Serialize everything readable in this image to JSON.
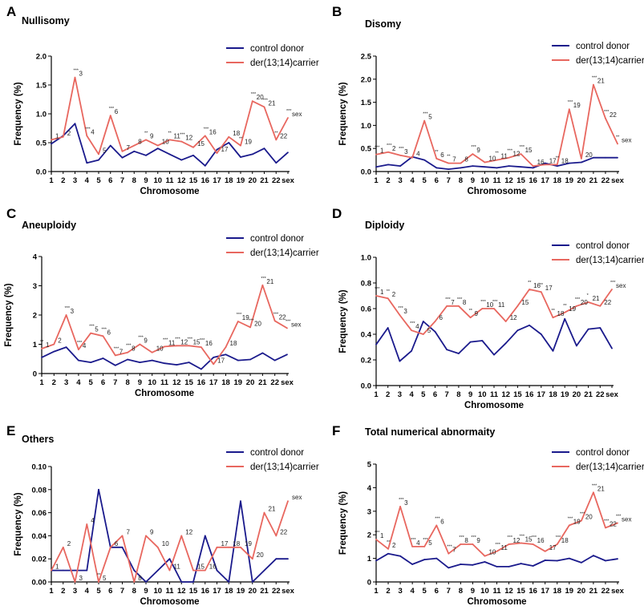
{
  "colors": {
    "control": "#1a1a8c",
    "carrier": "#e8675f",
    "axis": "#000000"
  },
  "chart_data": [
    {
      "type": "line",
      "panel": "A",
      "title": "Nullisomy",
      "xlabel": "Chromosome",
      "ylabel": "Frequency (%)",
      "ylim": [
        0,
        2.0
      ],
      "yticks": [
        "0.0",
        "0.5",
        "1.0",
        "1.5",
        "2.0"
      ],
      "categories": [
        "1",
        "2",
        "3",
        "4",
        "5",
        "6",
        "7",
        "8",
        "9",
        "10",
        "11",
        "12",
        "15",
        "16",
        "17",
        "18",
        "19",
        "20",
        "21",
        "22",
        "sex"
      ],
      "series": [
        {
          "name": "control donor",
          "values": [
            0.48,
            0.62,
            0.83,
            0.15,
            0.2,
            0.45,
            0.24,
            0.35,
            0.28,
            0.4,
            0.3,
            0.2,
            0.28,
            0.1,
            0.38,
            0.5,
            0.25,
            0.3,
            0.4,
            0.15,
            0.33
          ]
        },
        {
          "name": "der(13;14)carrier",
          "values": [
            0.55,
            0.6,
            1.63,
            0.62,
            0.3,
            0.97,
            0.35,
            0.45,
            0.55,
            0.45,
            0.55,
            0.52,
            0.42,
            0.62,
            0.32,
            0.6,
            0.45,
            1.22,
            1.12,
            0.55,
            0.93
          ]
        }
      ],
      "point_labels": [
        "1",
        "2",
        "3",
        "4",
        "5",
        "6",
        "7",
        "8",
        "9",
        "10",
        "11",
        "12",
        "15",
        "16",
        "17",
        "18",
        "19",
        "20",
        "21",
        "22",
        "sex"
      ],
      "stars": [
        "",
        "",
        "***",
        "***",
        "",
        "***",
        "",
        "",
        "**",
        "",
        "**",
        "***",
        "",
        "***",
        "",
        "",
        "**",
        "***",
        "***",
        "**",
        "***"
      ]
    },
    {
      "type": "line",
      "panel": "B",
      "title": "Disomy",
      "xlabel": "Chromosome",
      "ylabel": "Frequency (%)",
      "ylim": [
        0,
        2.5
      ],
      "yticks": [
        "0.0",
        "0.5",
        "1.0",
        "1.5",
        "2.0",
        "2.5"
      ],
      "categories": [
        "1",
        "2",
        "3",
        "4",
        "5",
        "6",
        "7",
        "8",
        "9",
        "10",
        "11",
        "12",
        "15",
        "16",
        "17",
        "18",
        "19",
        "20",
        "21",
        "22",
        "sex"
      ],
      "series": [
        {
          "name": "control donor",
          "values": [
            0.1,
            0.15,
            0.12,
            0.32,
            0.25,
            0.08,
            0.05,
            0.08,
            0.12,
            0.1,
            0.08,
            0.12,
            0.1,
            0.08,
            0.18,
            0.12,
            0.18,
            0.2,
            0.3,
            0.3,
            0.3
          ]
        },
        {
          "name": "der(13;14)carrier",
          "values": [
            0.37,
            0.42,
            0.35,
            0.3,
            1.1,
            0.28,
            0.18,
            0.18,
            0.38,
            0.2,
            0.25,
            0.3,
            0.38,
            0.12,
            0.15,
            0.15,
            1.35,
            0.28,
            1.88,
            1.15,
            0.6
          ]
        }
      ],
      "point_labels": [
        "1",
        "2",
        "3",
        "4",
        "5",
        "6",
        "7",
        "8",
        "9",
        "10",
        "11",
        "12",
        "15",
        "16",
        "17",
        "18",
        "19",
        "20",
        "21",
        "22",
        "sex"
      ],
      "stars": [
        "***",
        "***",
        "***",
        "",
        "***",
        "**",
        "**",
        "",
        "***",
        "",
        "**",
        "***",
        "***",
        "",
        "",
        "**",
        "***",
        "",
        "***",
        "***",
        "**"
      ]
    },
    {
      "type": "line",
      "panel": "C",
      "title": "Aneuploidy",
      "xlabel": "Chromosome",
      "ylabel": "Frequency  (%)",
      "ylim": [
        0,
        4
      ],
      "yticks": [
        "0",
        "1",
        "2",
        "3",
        "4"
      ],
      "categories": [
        "1",
        "2",
        "3",
        "4",
        "5",
        "6",
        "7",
        "8",
        "9",
        "10",
        "11",
        "12",
        "15",
        "16",
        "17",
        "18",
        "19",
        "20",
        "21",
        "22",
        "sex"
      ],
      "series": [
        {
          "name": "control donor",
          "values": [
            0.55,
            0.75,
            0.9,
            0.45,
            0.38,
            0.52,
            0.28,
            0.48,
            0.38,
            0.45,
            0.35,
            0.3,
            0.38,
            0.15,
            0.55,
            0.65,
            0.45,
            0.48,
            0.7,
            0.45,
            0.65
          ]
        },
        {
          "name": "der(13;14)carrier",
          "values": [
            0.85,
            1.0,
            2.0,
            0.82,
            1.38,
            1.28,
            0.62,
            0.72,
            1.0,
            0.72,
            0.92,
            0.95,
            0.95,
            0.9,
            0.32,
            0.9,
            1.78,
            1.58,
            3.02,
            1.8,
            1.55
          ]
        }
      ],
      "point_labels": [
        "1",
        "2",
        "3",
        "4",
        "5",
        "6",
        "7",
        "8",
        "9",
        "10",
        "11",
        "12",
        "15",
        "16",
        "17",
        "18",
        "19",
        "20",
        "21",
        "22",
        "sex"
      ],
      "stars": [
        "**",
        "",
        "***",
        "***",
        "***",
        "***",
        "***",
        "***",
        "***",
        "",
        "***",
        "***",
        "***",
        "***",
        "",
        "",
        "***",
        "***",
        "***",
        "***",
        "***"
      ]
    },
    {
      "type": "line",
      "panel": "D",
      "title": "Diploidy",
      "xlabel": "Chromosome",
      "ylabel": "Frequency (%)",
      "ylim": [
        0,
        1.0
      ],
      "yticks": [
        "0.0",
        "0.2",
        "0.4",
        "0.6",
        "0.8",
        "1.0"
      ],
      "categories": [
        "1",
        "2",
        "3",
        "4",
        "5",
        "6",
        "7",
        "8",
        "9",
        "10",
        "11",
        "12",
        "15",
        "16",
        "17",
        "18",
        "19",
        "20",
        "21",
        "22",
        "sex"
      ],
      "series": [
        {
          "name": "control donor",
          "values": [
            0.32,
            0.45,
            0.19,
            0.27,
            0.5,
            0.42,
            0.28,
            0.25,
            0.34,
            0.35,
            0.24,
            0.33,
            0.43,
            0.47,
            0.4,
            0.27,
            0.52,
            0.31,
            0.44,
            0.45,
            0.29
          ]
        },
        {
          "name": "der(13;14)carrier",
          "values": [
            0.7,
            0.68,
            0.55,
            0.43,
            0.4,
            0.5,
            0.62,
            0.62,
            0.53,
            0.6,
            0.6,
            0.5,
            0.62,
            0.75,
            0.73,
            0.53,
            0.57,
            0.62,
            0.65,
            0.62,
            0.75
          ]
        }
      ],
      "point_labels": [
        "1",
        "2",
        "3",
        "4",
        "5",
        "6",
        "7",
        "8",
        "9",
        "10",
        "11",
        "12",
        "15",
        "16",
        "17",
        "18",
        "19",
        "20",
        "21",
        "22",
        "sex"
      ],
      "stars": [
        "***",
        "**",
        "***",
        "***",
        "",
        "",
        "***",
        "***",
        "**",
        "***",
        "***",
        "",
        "",
        "**",
        "**",
        "**",
        "**",
        "***",
        "*",
        "",
        "***"
      ]
    },
    {
      "type": "line",
      "panel": "E",
      "title": "Others",
      "xlabel": "Chromosome",
      "ylabel": "Frequency  (%)",
      "ylim": [
        0,
        0.1
      ],
      "yticks": [
        "0.00",
        "0.02",
        "0.04",
        "0.06",
        "0.08",
        "0.10"
      ],
      "categories": [
        "1",
        "2",
        "3",
        "4",
        "5",
        "6",
        "7",
        "8",
        "9",
        "10",
        "11",
        "12",
        "15",
        "16",
        "17",
        "18",
        "19",
        "20",
        "21",
        "22",
        "sex"
      ],
      "series": [
        {
          "name": "control donor",
          "values": [
            0.01,
            0.01,
            0.01,
            0.01,
            0.08,
            0.03,
            0.03,
            0.01,
            0.0,
            0.01,
            0.02,
            0.0,
            0.0,
            0.04,
            0.01,
            0.0,
            0.07,
            0.0,
            0.01,
            0.02,
            0.02
          ]
        },
        {
          "name": "der(13;14)carrier",
          "values": [
            0.01,
            0.03,
            0.0,
            0.05,
            0.0,
            0.03,
            0.04,
            0.0,
            0.04,
            0.03,
            0.01,
            0.04,
            0.01,
            0.01,
            0.03,
            0.03,
            0.03,
            0.02,
            0.06,
            0.04,
            0.07
          ]
        }
      ],
      "point_labels": [
        "1",
        "2",
        "3",
        "4",
        "5",
        "6",
        "7",
        "8",
        "9",
        "10",
        "11",
        "12",
        "15",
        "16",
        "17",
        "18",
        "19",
        "20",
        "21",
        "22",
        "sex"
      ],
      "stars": [
        "",
        "",
        "",
        "",
        "**",
        "",
        "",
        "",
        "",
        "",
        "",
        "",
        "",
        "",
        "",
        "",
        "",
        "",
        "",
        "",
        ""
      ]
    },
    {
      "type": "line",
      "panel": "F",
      "title": "Total numerical abnormaity",
      "xlabel": "Chromosome",
      "ylabel": "Frequency  (%)",
      "ylim": [
        0,
        5
      ],
      "yticks": [
        "0",
        "1",
        "2",
        "3",
        "4",
        "5"
      ],
      "categories": [
        "1",
        "2",
        "3",
        "4",
        "5",
        "6",
        "7",
        "8",
        "9",
        "10",
        "11",
        "12",
        "15",
        "16",
        "17",
        "18",
        "19",
        "20",
        "21",
        "22",
        "sex"
      ],
      "series": [
        {
          "name": "control donor",
          "values": [
            0.9,
            1.2,
            1.1,
            0.75,
            0.95,
            1.0,
            0.6,
            0.75,
            0.72,
            0.85,
            0.65,
            0.65,
            0.78,
            0.68,
            0.92,
            0.9,
            1.0,
            0.82,
            1.12,
            0.9,
            0.98
          ]
        },
        {
          "name": "der(13;14)carrier",
          "values": [
            1.8,
            1.4,
            3.2,
            1.5,
            1.5,
            2.4,
            1.2,
            1.6,
            1.6,
            1.1,
            1.3,
            1.6,
            1.65,
            1.6,
            1.3,
            1.6,
            2.4,
            2.6,
            3.8,
            2.3,
            2.5
          ]
        }
      ],
      "point_labels": [
        "1",
        "2",
        "3",
        "4",
        "5",
        "6",
        "7",
        "8",
        "9",
        "10",
        "11",
        "12",
        "15",
        "16",
        "17",
        "18",
        "19",
        "20",
        "21",
        "22",
        "sex"
      ],
      "stars": [
        "***",
        "**",
        "***",
        "***",
        "***",
        "***",
        "***",
        "***",
        "***",
        "",
        "***",
        "***",
        "***",
        "***",
        "",
        "***",
        "***",
        "***",
        "***",
        "***",
        "***"
      ]
    }
  ]
}
